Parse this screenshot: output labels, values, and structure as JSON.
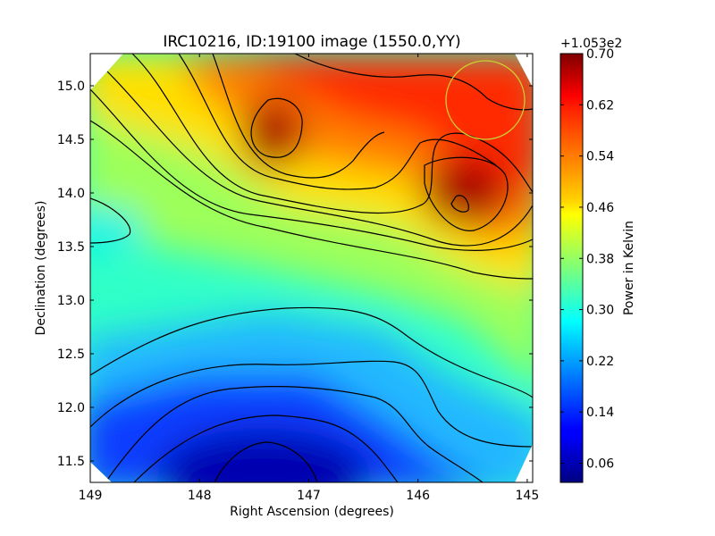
{
  "chart_data": {
    "type": "heatmap",
    "title": "IRC10216, ID:19100 image (1550.0,YY)",
    "xlabel": "Right Ascension (degrees)",
    "ylabel": "Declination (degrees)",
    "xlim": [
      149.0,
      144.95
    ],
    "ylim": [
      11.3,
      15.3
    ],
    "x_ticks": [
      "149",
      "148",
      "147",
      "146",
      "145"
    ],
    "x_tick_values": [
      149,
      148,
      147,
      146,
      145
    ],
    "y_ticks": [
      "11.5",
      "12.0",
      "12.5",
      "13.0",
      "13.5",
      "14.0",
      "14.5",
      "15.0"
    ],
    "y_tick_values": [
      11.5,
      12.0,
      12.5,
      13.0,
      13.5,
      14.0,
      14.5,
      15.0
    ],
    "colorbar": {
      "label": "Power in Kelvin",
      "offset_text": "+1.053e2",
      "range": [
        0.03,
        0.7
      ],
      "ticks": [
        "0.70",
        "0.62",
        "0.54",
        "0.46",
        "0.38",
        "0.30",
        "0.22",
        "0.14",
        "0.06"
      ],
      "tick_values": [
        0.7,
        0.62,
        0.54,
        0.46,
        0.38,
        0.3,
        0.22,
        0.14,
        0.06
      ],
      "colormap": "jet"
    },
    "grid": false,
    "contours": true,
    "peaks": [
      {
        "ra": 147.4,
        "dec": 14.5,
        "value": 0.7
      },
      {
        "ra": 145.6,
        "dec": 13.9,
        "value": 0.71
      }
    ],
    "minimum": {
      "ra": 147.4,
      "dec": 11.4,
      "value": 0.04
    },
    "beam_circle": {
      "ra": 145.4,
      "dec": 14.85,
      "radius_deg": 0.36,
      "color": "#cccc33"
    }
  }
}
